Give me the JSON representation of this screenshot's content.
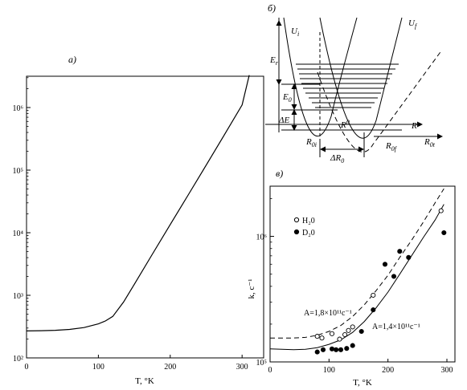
{
  "chart_data": [
    {
      "panel": "a)",
      "type": "line",
      "xlabel": "T, °K",
      "xlim": [
        0,
        330
      ],
      "ylim_log10": [
        2,
        6.5
      ],
      "x_ticks": [
        "0",
        "100",
        "200",
        "300"
      ],
      "x_tick_values": [
        0,
        100,
        200,
        300
      ],
      "y_ticks": [
        "10²",
        "10³",
        "10⁴",
        "10⁵",
        "10⁶"
      ],
      "y_tick_values": [
        100,
        1000,
        10000,
        100000,
        1000000
      ],
      "series": [
        {
          "x": [
            0,
            20,
            40,
            60,
            80,
            100,
            110,
            120,
            135,
            150,
            175,
            200,
            225,
            250,
            275,
            300,
            310
          ],
          "y": [
            270,
            272,
            276,
            285,
            305,
            350,
            390,
            460,
            780,
            1500,
            4500,
            13500,
            40000,
            120000,
            360000,
            1100000,
            3300000
          ]
        }
      ]
    },
    {
      "panel": "б)",
      "type": "diagram",
      "labels": {
        "ui": "U",
        "ui_sub": "i",
        "uf": "U",
        "uf_sub": "f",
        "er": "E",
        "er_sub": "r",
        "e0": "E",
        "e0_sub": "0",
        "de": "ΔE",
        "r0": "R",
        "r0_sup": "0",
        "rstar": "R*",
        "r0i": "R",
        "r0i_sub": "0i",
        "r0f": "R",
        "r0f_sub": "0f",
        "r0t": "R",
        "r0t_sub": "0t",
        "dr0": "ΔR",
        "dr0_sub": "0"
      }
    },
    {
      "panel": "в)",
      "type": "scatter",
      "xlabel": "T, °K",
      "ylabel": "k, c⁻¹",
      "xlim": [
        0,
        300
      ],
      "ylim_log10": [
        5,
        6.4
      ],
      "x_ticks": [
        "0",
        "100",
        "200",
        "300"
      ],
      "x_tick_values": [
        0,
        100,
        200,
        300
      ],
      "y_ticks": [
        "10⁵",
        "10⁶"
      ],
      "y_tick_values": [
        100000,
        1000000
      ],
      "legend": [
        {
          "marker": "open",
          "text": "H₂0"
        },
        {
          "marker": "filled",
          "text": "D₂0"
        }
      ],
      "annotations": {
        "dashed": "A=1,8×10¹¹c⁻¹",
        "solid": "A=1,4×10¹¹c⁻¹"
      },
      "series": [
        {
          "marker": "open",
          "x": [
            80,
            88,
            105,
            118,
            127,
            133,
            140,
            175,
            290
          ],
          "y": [
            160000,
            155000,
            168000,
            152000,
            165000,
            178000,
            190000,
            340000,
            1600000
          ]
        },
        {
          "marker": "filled",
          "x": [
            80,
            90,
            105,
            112,
            120,
            130,
            140,
            155,
            175,
            195,
            210,
            220,
            235,
            295
          ],
          "y": [
            120000,
            125000,
            127000,
            125000,
            125000,
            128000,
            135000,
            175000,
            260000,
            600000,
            480000,
            760000,
            680000,
            1070000
          ]
        },
        {
          "line": "dashed",
          "x": [
            0,
            40,
            60,
            80,
            100,
            120,
            140,
            160,
            180,
            200,
            220,
            240,
            260,
            280,
            295
          ],
          "y": [
            155000,
            155000,
            157000,
            163000,
            175000,
            195000,
            230000,
            285000,
            370000,
            490000,
            680000,
            930000,
            1300000,
            1850000,
            2400000
          ]
        },
        {
          "line": "solid",
          "x": [
            0,
            40,
            60,
            80,
            100,
            120,
            140,
            160,
            180,
            200,
            220,
            240,
            260,
            280,
            295
          ],
          "y": [
            127000,
            125000,
            126000,
            130000,
            138000,
            150000,
            172000,
            210000,
            270000,
            360000,
            500000,
            700000,
            980000,
            1350000,
            1800000
          ]
        }
      ]
    }
  ]
}
